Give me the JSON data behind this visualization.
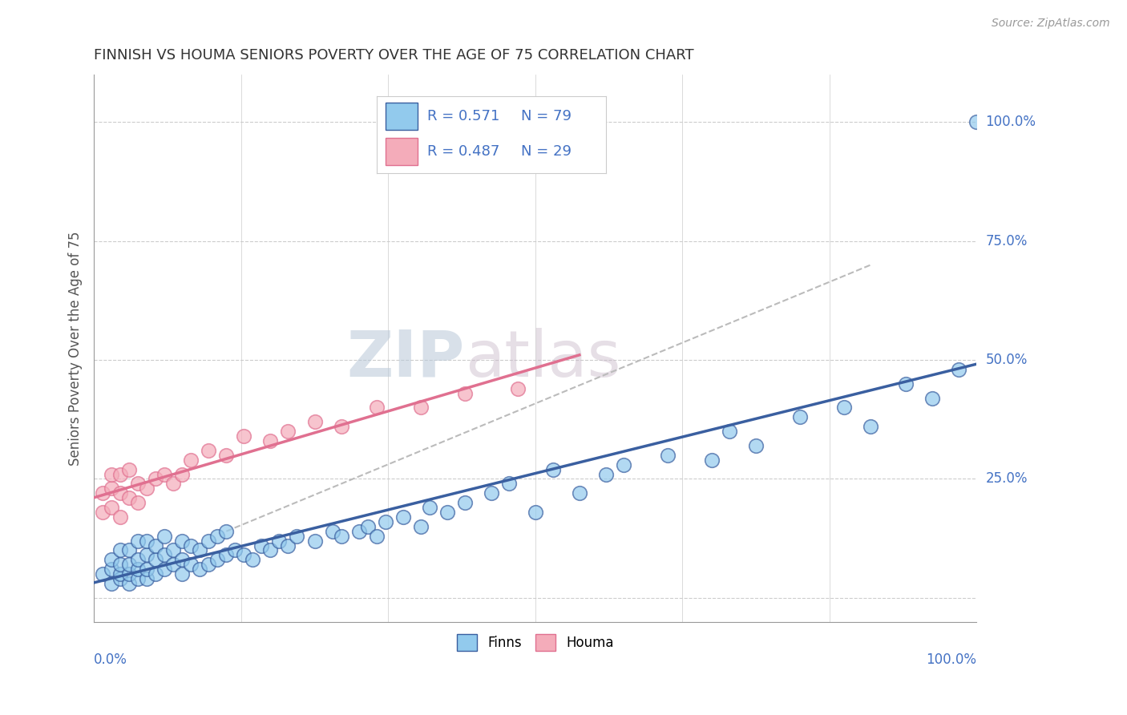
{
  "title": "FINNISH VS HOUMA SENIORS POVERTY OVER THE AGE OF 75 CORRELATION CHART",
  "source": "Source: ZipAtlas.com",
  "ylabel": "Seniors Poverty Over the Age of 75",
  "legend_finns": "Finns",
  "legend_houma": "Houma",
  "finns_R": "0.571",
  "finns_N": "79",
  "houma_R": "0.487",
  "houma_N": "29",
  "finns_color": "#92CAED",
  "houma_color": "#F4ACBA",
  "finns_line_color": "#3A5FA0",
  "houma_line_color": "#E07090",
  "trend_dash_color": "#BBBBBB",
  "background_color": "#FFFFFF",
  "grid_color": "#CCCCCC",
  "title_color": "#333333",
  "label_color": "#4472C4",
  "watermark_color": "#C8D8E8",
  "watermark_text": "ZIPatlas",
  "finns_x": [
    0.01,
    0.02,
    0.02,
    0.02,
    0.03,
    0.03,
    0.03,
    0.03,
    0.04,
    0.04,
    0.04,
    0.04,
    0.05,
    0.05,
    0.05,
    0.05,
    0.06,
    0.06,
    0.06,
    0.06,
    0.07,
    0.07,
    0.07,
    0.08,
    0.08,
    0.08,
    0.09,
    0.09,
    0.1,
    0.1,
    0.1,
    0.11,
    0.11,
    0.12,
    0.12,
    0.13,
    0.13,
    0.14,
    0.14,
    0.15,
    0.15,
    0.16,
    0.17,
    0.18,
    0.19,
    0.2,
    0.21,
    0.22,
    0.23,
    0.25,
    0.27,
    0.28,
    0.3,
    0.31,
    0.32,
    0.33,
    0.35,
    0.37,
    0.38,
    0.4,
    0.42,
    0.45,
    0.47,
    0.5,
    0.52,
    0.55,
    0.58,
    0.6,
    0.65,
    0.7,
    0.72,
    0.75,
    0.8,
    0.85,
    0.88,
    0.92,
    0.95,
    0.98,
    1.0
  ],
  "finns_y": [
    0.05,
    0.03,
    0.06,
    0.08,
    0.04,
    0.05,
    0.07,
    0.1,
    0.03,
    0.05,
    0.07,
    0.1,
    0.04,
    0.06,
    0.08,
    0.12,
    0.04,
    0.06,
    0.09,
    0.12,
    0.05,
    0.08,
    0.11,
    0.06,
    0.09,
    0.13,
    0.07,
    0.1,
    0.05,
    0.08,
    0.12,
    0.07,
    0.11,
    0.06,
    0.1,
    0.07,
    0.12,
    0.08,
    0.13,
    0.09,
    0.14,
    0.1,
    0.09,
    0.08,
    0.11,
    0.1,
    0.12,
    0.11,
    0.13,
    0.12,
    0.14,
    0.13,
    0.14,
    0.15,
    0.13,
    0.16,
    0.17,
    0.15,
    0.19,
    0.18,
    0.2,
    0.22,
    0.24,
    0.18,
    0.27,
    0.22,
    0.26,
    0.28,
    0.3,
    0.29,
    0.35,
    0.32,
    0.38,
    0.4,
    0.36,
    0.45,
    0.42,
    0.48,
    1.0
  ],
  "houma_x": [
    0.01,
    0.01,
    0.02,
    0.02,
    0.02,
    0.03,
    0.03,
    0.03,
    0.04,
    0.04,
    0.05,
    0.05,
    0.06,
    0.07,
    0.08,
    0.09,
    0.1,
    0.11,
    0.13,
    0.15,
    0.17,
    0.2,
    0.22,
    0.25,
    0.28,
    0.32,
    0.37,
    0.42,
    0.48
  ],
  "houma_y": [
    0.18,
    0.22,
    0.19,
    0.23,
    0.26,
    0.17,
    0.22,
    0.26,
    0.21,
    0.27,
    0.2,
    0.24,
    0.23,
    0.25,
    0.26,
    0.24,
    0.26,
    0.29,
    0.31,
    0.3,
    0.34,
    0.33,
    0.35,
    0.37,
    0.36,
    0.4,
    0.4,
    0.43,
    0.44
  ],
  "finns_trend_x": [
    0.0,
    1.0
  ],
  "finns_trend_y": [
    -0.02,
    0.5
  ],
  "houma_trend_x": [
    0.0,
    0.55
  ],
  "houma_trend_y": [
    0.16,
    0.46
  ],
  "dash_trend_x": [
    0.15,
    0.88
  ],
  "dash_trend_y": [
    0.14,
    0.7
  ],
  "xlim": [
    0,
    1
  ],
  "ylim": [
    -0.05,
    1.1
  ],
  "yticks": [
    0.0,
    0.25,
    0.5,
    0.75,
    1.0
  ],
  "ytick_labels": [
    "0.0%",
    "25.0%",
    "50.0%",
    "75.0%",
    "100.0%"
  ],
  "xtick_labels_left": "0.0%",
  "xtick_labels_right": "100.0%"
}
